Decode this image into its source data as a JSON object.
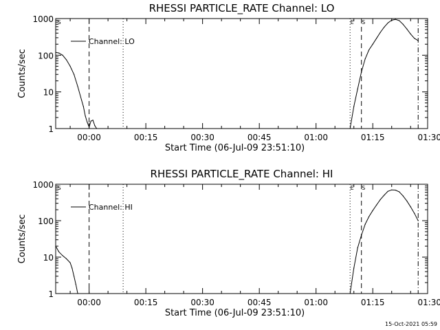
{
  "footer": {
    "timestamp": "15-Oct-2021 05:59"
  },
  "chart_data": [
    {
      "type": "line",
      "title": "RHESSI PARTICLE_RATE Channel: LO",
      "xlabel": "Start Time (06-Jul-09 23:51:10)",
      "ylabel": "Counts/sec",
      "y_scale": "log",
      "ylim": [
        1,
        1000
      ],
      "y_ticks": [
        1,
        10,
        100,
        1000
      ],
      "y_tick_labels": [
        "1",
        "10",
        "100",
        "1000"
      ],
      "x_tick_labels": [
        "00:00",
        "00:15",
        "00:30",
        "00:45",
        "01:00",
        "01:15",
        "01:30"
      ],
      "legend": {
        "placement": "top-left",
        "entries": [
          "Channel: LO"
        ]
      },
      "markers": [
        {
          "label": "S",
          "time": "23:51:10",
          "style": "dashed"
        },
        {
          "label": "",
          "time": "00:00:00",
          "style": "dashed"
        },
        {
          "label": "",
          "time": "00:09:00",
          "style": "dotted"
        },
        {
          "label": "E",
          "time": "01:09:00",
          "style": "dotted"
        },
        {
          "label": "S",
          "time": "01:12:00",
          "style": "dashed"
        },
        {
          "label": "",
          "time": "01:27:00",
          "style": "dashdot"
        }
      ],
      "series": [
        {
          "name": "Channel: LO",
          "segments": [
            {
              "time": [
                "23:51:10",
                "23:52:00",
                "23:53:00",
                "23:54:00",
                "23:55:00",
                "23:56:00",
                "23:57:00",
                "23:58:00",
                "23:58:30",
                "23:59:00",
                "23:59:30",
                "00:00:00",
                "00:00:30",
                "00:01:00",
                "00:01:30",
                "00:02:00"
              ],
              "values": [
                120,
                115,
                100,
                75,
                50,
                30,
                14,
                6,
                4,
                2.2,
                1.5,
                1.1,
                1.6,
                1.7,
                1.2,
                1.0
              ]
            },
            {
              "time": [
                "01:09:00",
                "01:10:00",
                "01:11:00",
                "01:12:00",
                "01:13:00",
                "01:14:00",
                "01:15:00",
                "01:16:00",
                "01:17:00",
                "01:18:00",
                "01:19:00",
                "01:20:00",
                "01:21:00",
                "01:22:00",
                "01:23:00",
                "01:24:00",
                "01:25:00",
                "01:26:00",
                "01:27:00"
              ],
              "values": [
                1,
                4,
                12,
                35,
                80,
                140,
                200,
                290,
                420,
                580,
                760,
                900,
                950,
                880,
                700,
                520,
                380,
                290,
                250
              ]
            }
          ]
        }
      ]
    },
    {
      "type": "line",
      "title": "RHESSI PARTICLE_RATE Channel: HI",
      "xlabel": "Start Time (06-Jul-09 23:51:10)",
      "ylabel": "Counts/sec",
      "y_scale": "log",
      "ylim": [
        1,
        1000
      ],
      "y_ticks": [
        1,
        10,
        100,
        1000
      ],
      "y_tick_labels": [
        "1",
        "10",
        "100",
        "1000"
      ],
      "x_tick_labels": [
        "00:00",
        "00:15",
        "00:30",
        "00:45",
        "01:00",
        "01:15",
        "01:30"
      ],
      "legend": {
        "placement": "top-left",
        "entries": [
          "Channel: HI"
        ]
      },
      "markers": [
        {
          "label": "S",
          "time": "23:51:10",
          "style": "dashed"
        },
        {
          "label": "",
          "time": "00:00:00",
          "style": "dashed"
        },
        {
          "label": "",
          "time": "00:09:00",
          "style": "dotted"
        },
        {
          "label": "E",
          "time": "01:09:00",
          "style": "dotted"
        },
        {
          "label": "S",
          "time": "01:12:00",
          "style": "dashed"
        },
        {
          "label": "",
          "time": "01:27:00",
          "style": "dashdot"
        }
      ],
      "series": [
        {
          "name": "Channel: HI",
          "segments": [
            {
              "time": [
                "23:51:10",
                "23:52:00",
                "23:53:00",
                "23:54:00",
                "23:55:00",
                "23:55:30",
                "23:56:00",
                "23:56:30",
                "23:57:00"
              ],
              "values": [
                20,
                14,
                11,
                9,
                7,
                5,
                3,
                1.8,
                1.0
              ]
            },
            {
              "time": [
                "01:09:00",
                "01:10:00",
                "01:11:00",
                "01:12:00",
                "01:13:00",
                "01:14:00",
                "01:15:00",
                "01:16:00",
                "01:17:00",
                "01:18:00",
                "01:19:00",
                "01:20:00",
                "01:21:00",
                "01:22:00",
                "01:23:00",
                "01:24:00",
                "01:25:00",
                "01:26:00",
                "01:27:00"
              ],
              "values": [
                1,
                5,
                18,
                40,
                80,
                130,
                190,
                270,
                380,
                500,
                640,
                700,
                690,
                620,
                480,
                350,
                240,
                160,
                100
              ]
            }
          ]
        }
      ]
    }
  ]
}
